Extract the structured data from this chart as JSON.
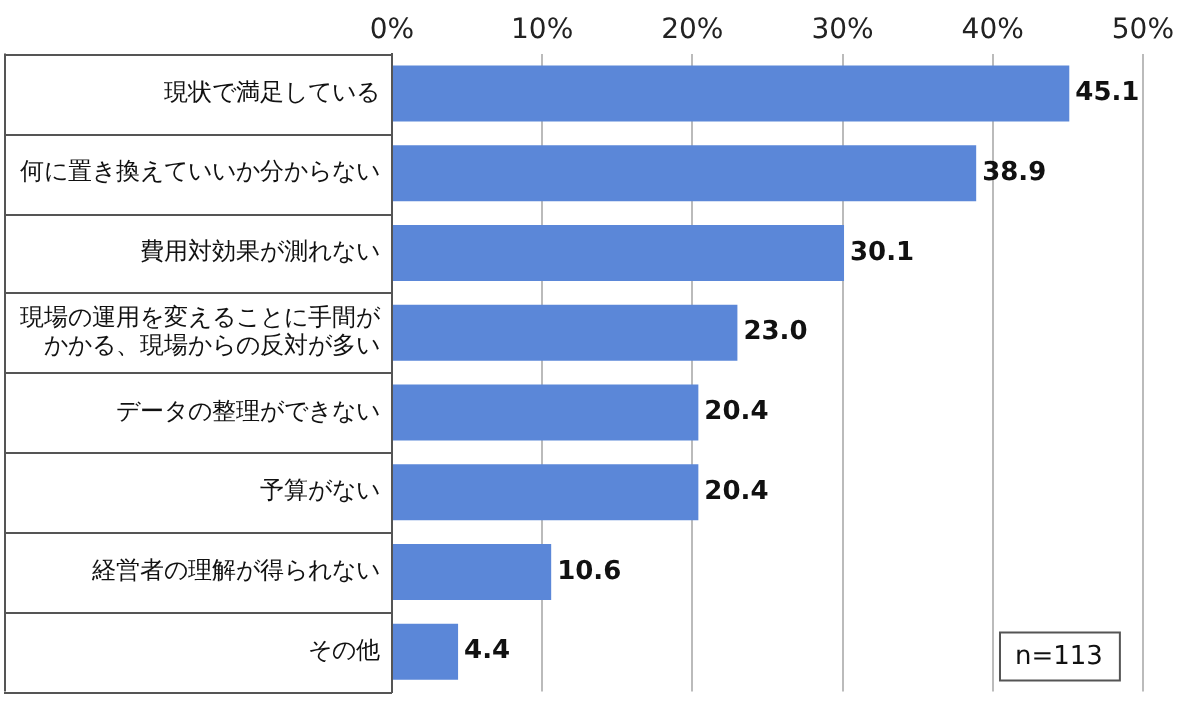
{
  "chart_data": {
    "type": "bar",
    "orientation": "horizontal",
    "categories": [
      "現状で満足している",
      "何に置き換えていいか分からない",
      "費用対効果が測れない",
      "現場の運用を変えることに手間がかかる、現場からの反対が多い",
      "データの整理ができない",
      "予算がない",
      "経営者の理解が得られない",
      "その他"
    ],
    "values": [
      45.1,
      38.9,
      30.1,
      23.0,
      20.4,
      20.4,
      10.6,
      4.4
    ],
    "value_labels": [
      "45.1",
      "38.9",
      "30.1",
      "23.0",
      "20.4",
      "20.4",
      "10.6",
      "4.4"
    ],
    "color": "#5b87d8",
    "xlim": [
      0,
      50
    ],
    "xticks": [
      {
        "value": 0,
        "label": "0%"
      },
      {
        "value": 10,
        "label": "10%"
      },
      {
        "value": 20,
        "label": "20%"
      },
      {
        "value": 30,
        "label": "30%"
      },
      {
        "value": 40,
        "label": "40%"
      },
      {
        "value": 50,
        "label": "50%"
      }
    ],
    "grid": "x",
    "legend": false,
    "annotations": [
      "n=113"
    ]
  }
}
